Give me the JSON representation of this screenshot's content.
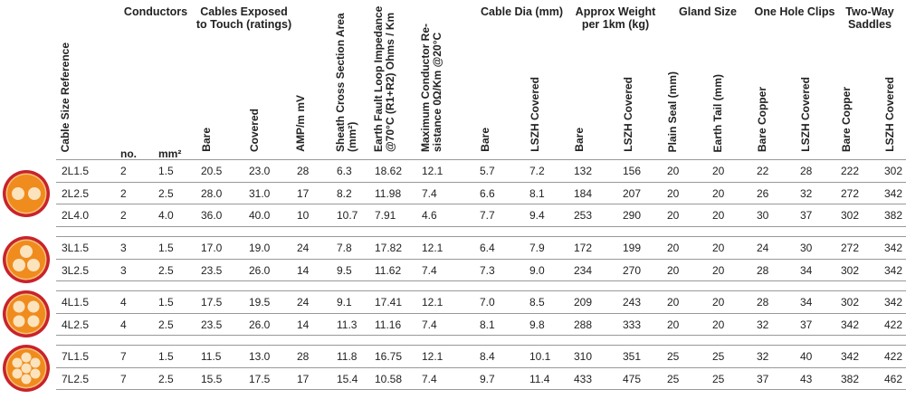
{
  "header": [
    {
      "title": "Cable Size Reference"
    },
    {
      "title": "Conductors",
      "sub": [
        "no.",
        "mm²"
      ]
    },
    {
      "title": "Cables Exposed to Touch (ratings)",
      "sub": [
        "Bare",
        "Covered"
      ]
    },
    {
      "title": "AMP/m mV"
    },
    {
      "title": "Sheath Cross Section Area (mm²)"
    },
    {
      "title": "Earth Fault Loop Impedance @70°C (R1+R2) Ohms / Km"
    },
    {
      "title": "Maximum Conductor Re-sistance 0Ω/Km @20°C"
    },
    {
      "title": "Cable Dia (mm)",
      "sub": [
        "Bare",
        "LSZH Covered"
      ]
    },
    {
      "title": "Approx Weight per 1km (kg)",
      "sub": [
        "Bare",
        "LSZH Covered"
      ]
    },
    {
      "title": "Gland Size",
      "sub": [
        "Plain Seal (mm)",
        "Earth Tail (mm)"
      ]
    },
    {
      "title": "One Hole Clips",
      "sub": [
        "Bare Copper",
        "LSZH Covered"
      ]
    },
    {
      "title": "Two-Way Saddles",
      "sub": [
        "Bare Copper",
        "LSZH Covered"
      ]
    }
  ],
  "groups": [
    [
      [
        "2L1.5",
        "2",
        "1.5",
        "20.5",
        "23.0",
        "28",
        "6.3",
        "18.62",
        "12.1",
        "5.7",
        "7.2",
        "132",
        "156",
        "20",
        "20",
        "22",
        "28",
        "222",
        "302"
      ],
      [
        "2L2.5",
        "2",
        "2.5",
        "28.0",
        "31.0",
        "17",
        "8.2",
        "11.98",
        "7.4",
        "6.6",
        "8.1",
        "184",
        "207",
        "20",
        "20",
        "26",
        "32",
        "272",
        "342"
      ],
      [
        "2L4.0",
        "2",
        "4.0",
        "36.0",
        "40.0",
        "10",
        "10.7",
        "7.91",
        "4.6",
        "7.7",
        "9.4",
        "253",
        "290",
        "20",
        "20",
        "30",
        "37",
        "302",
        "382"
      ]
    ],
    [
      [
        "3L1.5",
        "3",
        "1.5",
        "17.0",
        "19.0",
        "24",
        "7.8",
        "17.82",
        "12.1",
        "6.4",
        "7.9",
        "172",
        "199",
        "20",
        "20",
        "24",
        "30",
        "272",
        "342"
      ],
      [
        "3L2.5",
        "3",
        "2.5",
        "23.5",
        "26.0",
        "14",
        "9.5",
        "11.62",
        "7.4",
        "7.3",
        "9.0",
        "234",
        "270",
        "20",
        "20",
        "28",
        "34",
        "302",
        "342"
      ]
    ],
    [
      [
        "4L1.5",
        "4",
        "1.5",
        "17.5",
        "19.5",
        "24",
        "9.1",
        "17.41",
        "12.1",
        "7.0",
        "8.5",
        "209",
        "243",
        "20",
        "20",
        "28",
        "34",
        "302",
        "342"
      ],
      [
        "4L2.5",
        "4",
        "2.5",
        "23.5",
        "26.0",
        "14",
        "11.3",
        "11.16",
        "7.4",
        "8.1",
        "9.8",
        "288",
        "333",
        "20",
        "20",
        "32",
        "37",
        "342",
        "422"
      ]
    ],
    [
      [
        "7L1.5",
        "7",
        "1.5",
        "11.5",
        "13.0",
        "28",
        "11.8",
        "16.75",
        "12.1",
        "8.4",
        "10.1",
        "310",
        "351",
        "25",
        "25",
        "32",
        "40",
        "342",
        "422"
      ],
      [
        "7L2.5",
        "7",
        "2.5",
        "15.5",
        "17.5",
        "17",
        "15.4",
        "10.58",
        "7.4",
        "9.7",
        "11.4",
        "433",
        "475",
        "25",
        "25",
        "37",
        "43",
        "382",
        "462"
      ]
    ]
  ]
}
